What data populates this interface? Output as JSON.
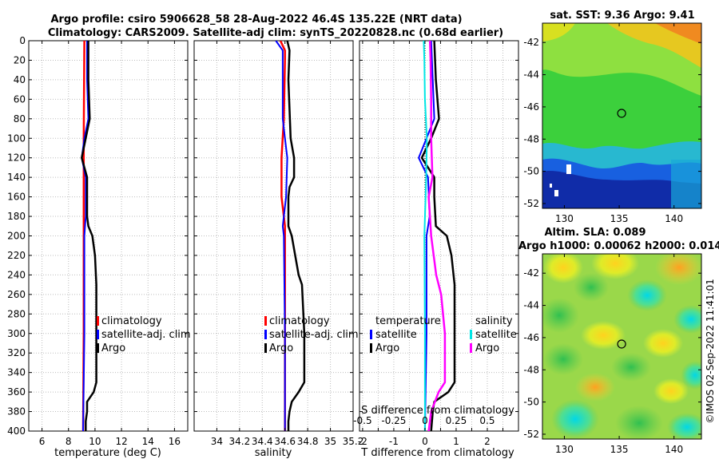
{
  "titles": {
    "line1": "Argo profile: csiro 5906628_58 28-Aug-2022 46.4S 135.22E (NRT data)",
    "line2": "Climatology: CARS2009. Satellite-adj clim: synTS_20220828.nc (0.68d earlier)",
    "sst": "sat. SST: 9.36 Argo: 9.41",
    "sla1": "Altim. SLA: 0.089",
    "sla2": "Argo h1000: 0.00062 h2000: 0.014"
  },
  "watermark": "©IMOS 02-Sep-2022 11:41:01",
  "colors": {
    "climatology": "#ff0000",
    "satellite": "#0000ff",
    "argo": "#000000",
    "sat_s": "#00e5e5",
    "argo_s": "#ff00ff"
  },
  "chart_data": [
    {
      "type": "line",
      "id": "temperature",
      "xlabel": "temperature (deg C)",
      "ylabel": "",
      "xlim": [
        5,
        17
      ],
      "ylim": [
        400,
        0
      ],
      "xticks": [
        6,
        8,
        10,
        12,
        14,
        16
      ],
      "yticks": [
        0,
        20,
        40,
        60,
        80,
        100,
        120,
        140,
        160,
        180,
        200,
        220,
        240,
        260,
        280,
        300,
        320,
        340,
        360,
        380,
        400
      ],
      "grid": true,
      "legend_position": "center-right",
      "series": [
        {
          "name": "climatology",
          "color": "#ff0000",
          "width": 2.5,
          "depth": [
            0,
            100,
            200,
            300,
            400
          ],
          "values": [
            9.2,
            9.15,
            9.15,
            9.15,
            9.1
          ]
        },
        {
          "name": "satellite-adj. clim",
          "color": "#0000ff",
          "width": 2,
          "depth": [
            0,
            40,
            80,
            100,
            120,
            140,
            180,
            200,
            300,
            400
          ],
          "values": [
            9.4,
            9.4,
            9.5,
            9.2,
            9.0,
            9.3,
            9.3,
            9.2,
            9.2,
            9.1
          ]
        },
        {
          "name": "Argo",
          "color": "#000000",
          "width": 2.5,
          "depth": [
            0,
            40,
            80,
            100,
            120,
            140,
            160,
            180,
            190,
            200,
            220,
            250,
            300,
            350,
            360,
            370,
            380,
            390,
            400
          ],
          "values": [
            9.5,
            9.5,
            9.6,
            9.3,
            9.0,
            9.4,
            9.4,
            9.4,
            9.5,
            9.8,
            10.0,
            10.1,
            10.1,
            10.1,
            9.9,
            9.4,
            9.4,
            9.3,
            9.3
          ]
        }
      ],
      "legend": [
        "climatology",
        "satellite-adj. clim",
        "Argo"
      ]
    },
    {
      "type": "line",
      "id": "salinity",
      "xlabel": "salinity",
      "ylabel": "",
      "xlim": [
        33.8,
        35.2
      ],
      "ylim": [
        400,
        0
      ],
      "xticks": [
        34,
        34.2,
        34.4,
        34.6,
        34.8,
        35,
        35.2
      ],
      "yticks": [
        0,
        20,
        40,
        60,
        80,
        100,
        120,
        140,
        160,
        180,
        200,
        220,
        240,
        260,
        280,
        300,
        320,
        340,
        360,
        380,
        400
      ],
      "grid": true,
      "legend_position": "center-right",
      "series": [
        {
          "name": "climatology",
          "color": "#ff0000",
          "width": 2.5,
          "depth": [
            0,
            10,
            20,
            80,
            120,
            160,
            190,
            200,
            300,
            400
          ],
          "values": [
            34.56,
            34.6,
            34.6,
            34.59,
            34.57,
            34.57,
            34.6,
            34.6,
            34.6,
            34.6
          ]
        },
        {
          "name": "satellite-adj. clim",
          "color": "#0000ff",
          "width": 2,
          "depth": [
            0,
            10,
            20,
            80,
            100,
            120,
            160,
            190,
            200,
            300,
            400
          ],
          "values": [
            34.52,
            34.58,
            34.58,
            34.58,
            34.6,
            34.62,
            34.61,
            34.58,
            34.59,
            34.6,
            34.6
          ]
        },
        {
          "name": "Argo",
          "color": "#000000",
          "width": 2.5,
          "depth": [
            0,
            10,
            40,
            100,
            120,
            140,
            150,
            160,
            190,
            200,
            220,
            240,
            250,
            300,
            350,
            360,
            370,
            380,
            390,
            400
          ],
          "values": [
            34.62,
            34.64,
            34.63,
            34.65,
            34.68,
            34.68,
            34.64,
            34.63,
            34.63,
            34.66,
            34.69,
            34.72,
            34.75,
            34.77,
            34.77,
            34.72,
            34.66,
            34.64,
            34.63,
            34.63
          ]
        }
      ],
      "legend": [
        "climatology",
        "satellite-adj. clim",
        "Argo"
      ]
    },
    {
      "type": "line",
      "id": "difference",
      "xlabel": "T difference from climatology",
      "x2label": "S difference from climatology",
      "xlim": [
        -2.1,
        3
      ],
      "ylim": [
        400,
        0
      ],
      "xticks": [
        -2,
        -1.5,
        -1,
        -0.5,
        0,
        0.5,
        1,
        1.5,
        2,
        2.5
      ],
      "xtick_labels": [
        "-2",
        "",
        "-1",
        "",
        "0",
        "",
        "1",
        "",
        "2",
        ""
      ],
      "x2ticks": [
        -0.5,
        -0.25,
        0,
        0.25,
        0.5
      ],
      "x2tick_labels": [
        "-0.5",
        "-0.25",
        "0",
        "0.25",
        "0.5"
      ],
      "x2_scale": 4,
      "yticks": [
        0,
        20,
        40,
        60,
        80,
        100,
        120,
        140,
        160,
        180,
        200,
        220,
        240,
        260,
        280,
        300,
        320,
        340,
        360,
        380,
        400
      ],
      "grid": true,
      "series": [
        {
          "name": "temperature satellite",
          "color": "#0000ff",
          "width": 2,
          "depth": [
            0,
            40,
            80,
            100,
            120,
            140,
            180,
            200,
            300,
            400
          ],
          "values": [
            0.2,
            0.25,
            0.3,
            0.05,
            -0.2,
            0.1,
            0.15,
            0.05,
            0.05,
            0.0
          ]
        },
        {
          "name": "temperature Argo",
          "color": "#000000",
          "width": 2.5,
          "depth": [
            0,
            40,
            80,
            100,
            120,
            140,
            160,
            190,
            200,
            220,
            250,
            300,
            350,
            360,
            370,
            380,
            400
          ],
          "values": [
            0.3,
            0.35,
            0.45,
            0.2,
            -0.1,
            0.3,
            0.3,
            0.35,
            0.7,
            0.85,
            0.95,
            0.95,
            0.95,
            0.75,
            0.3,
            0.25,
            0.2
          ]
        },
        {
          "name": "salinity satellite",
          "color": "#00e5e5",
          "width": 2,
          "depth": [
            0,
            20,
            60,
            100,
            140,
            200,
            300,
            400
          ],
          "values": [
            -0.01,
            -0.005,
            0.0,
            0.015,
            0.01,
            -0.005,
            0.0,
            0.0
          ]
        },
        {
          "name": "salinity Argo",
          "color": "#ff00ff",
          "width": 2.5,
          "depth": [
            0,
            20,
            60,
            100,
            140,
            160,
            200,
            240,
            260,
            300,
            350,
            360,
            380,
            400
          ],
          "values": [
            0.04,
            0.045,
            0.05,
            0.05,
            0.06,
            0.03,
            0.05,
            0.09,
            0.13,
            0.16,
            0.16,
            0.11,
            0.05,
            0.03
          ]
        }
      ],
      "legend_left_title": "temperature",
      "legend_right_title": "salinity",
      "legend_left": [
        "satellite",
        "Argo"
      ],
      "legend_right": [
        "satellite",
        "Argo"
      ]
    },
    {
      "type": "heatmap",
      "id": "sst_map",
      "title": "sat. SST: 9.36 Argo: 9.41",
      "xlim": [
        128,
        142.5
      ],
      "ylim": [
        -52.3,
        -40.8
      ],
      "xticks": [
        130,
        135,
        140
      ],
      "yticks": [
        -42,
        -44,
        -46,
        -48,
        -50,
        -52
      ],
      "marker": {
        "lon": 135.22,
        "lat": -46.4
      }
    },
    {
      "type": "heatmap",
      "id": "sla_map",
      "title": "Altim. SLA: 0.089",
      "xlim": [
        128,
        142.5
      ],
      "ylim": [
        -52.3,
        -40.8
      ],
      "xticks": [
        130,
        135,
        140
      ],
      "yticks": [
        -42,
        -44,
        -46,
        -48,
        -50,
        -52
      ],
      "marker": {
        "lon": 135.22,
        "lat": -46.4
      }
    }
  ]
}
